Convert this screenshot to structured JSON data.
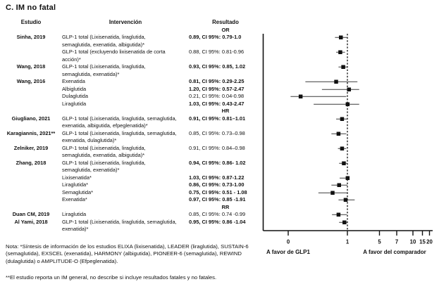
{
  "title": "C. IM no fatal",
  "table": {
    "headers": {
      "study": "Estudio",
      "intervention": "Intervención",
      "result": "Resultado"
    }
  },
  "chart_data": {
    "type": "scatter",
    "subtype": "forest-plot",
    "title": "C. IM no fatal",
    "x_ticks": [
      0,
      1,
      5,
      7,
      10,
      15,
      20
    ],
    "reference_line": 1,
    "axis_label_left": "A favor de GLP1",
    "axis_label_right": "A favor del comparador",
    "sections": [
      {
        "measure": "OR",
        "rows": [
          {
            "study": "Sinha, 2019",
            "intervention": "GLP-1 total (Lixisenatida, liraglutida,\nsemaglutida, exenatida, albigutida)*",
            "result": "0.89, CI 95%: 0.79-1.0",
            "bold": true,
            "est": 0.89,
            "lo": 0.79,
            "hi": 1.0
          },
          {
            "study": "",
            "intervention": "GLP-1 total (excluyendo lixisenatida de corta\nacción)*",
            "result": "0.88, CI 95%: 0.81-0.96",
            "bold": false,
            "est": 0.88,
            "lo": 0.81,
            "hi": 0.96
          },
          {
            "study": "Wang, 2018",
            "intervention": "GLP-1 total (Lixisenatida, liraglutida,\nsemaglutida, exenatida)*",
            "result": "0.93, CI 95%: 0.85, 1.02",
            "bold": true,
            "est": 0.93,
            "lo": 0.85,
            "hi": 1.02
          },
          {
            "study": "Wang, 2016",
            "intervention": "Exenatida",
            "result": "0.81, CI 95%: 0.29-2.25",
            "bold": true,
            "est": 0.81,
            "lo": 0.29,
            "hi": 2.25
          },
          {
            "study": "",
            "intervention": "Albiglutida",
            "result": "1.20, CI 95%: 0.57-2.47",
            "bold": true,
            "est": 1.2,
            "lo": 0.57,
            "hi": 2.47
          },
          {
            "study": "",
            "intervention": "Dulaglutida",
            "result": "0.21, CI 95%: 0.04-0.98",
            "bold": false,
            "est": 0.21,
            "lo": 0.04,
            "hi": 0.98
          },
          {
            "study": "",
            "intervention": "Liraglutida",
            "result": "1.03, CI 95%: 0.43-2.47",
            "bold": true,
            "est": 1.03,
            "lo": 0.43,
            "hi": 2.47
          }
        ]
      },
      {
        "measure": "HR",
        "rows": [
          {
            "study": "Giugliano, 2021",
            "intervention": "GLP-1 total (Lixisenatida, liraglutida, semaglutida,\nexenatida, albigutida, efpeglenatida)*",
            "result": "0.91, CI 95%: 0.81–1.01",
            "bold": true,
            "est": 0.91,
            "lo": 0.81,
            "hi": 1.01
          },
          {
            "study": "Karagiannis, 2021**",
            "intervention": "GLP-1 total (Lixisenatida, liraglutida, semaglutida,\nexenatida, dulaglutida)*",
            "result": "0.85, CI 95%: 0.73–0.98",
            "bold": false,
            "est": 0.85,
            "lo": 0.73,
            "hi": 0.98
          },
          {
            "study": "Zelniker, 2019",
            "intervention": "GLP-1 total (Lixisenatida, liraglutida,\nsemaglutida, exenatida, albigutida)*",
            "result": "0.91, CI 95%: 0.84–0.98",
            "bold": false,
            "est": 0.91,
            "lo": 0.84,
            "hi": 0.98
          },
          {
            "study": "Zhang, 2018",
            "intervention": "GLP-1 total (Lixisenatida, liraglutida,\nsemaglutida, exenatida)*",
            "result": "0.94, CI 95%: 0.86- 1.02",
            "bold": true,
            "est": 0.94,
            "lo": 0.86,
            "hi": 1.02
          },
          {
            "study": "",
            "intervention": "Lixisenatida*",
            "result": "1.03, CI 95%: 0.87-1.22",
            "bold": true,
            "est": 1.03,
            "lo": 0.87,
            "hi": 1.22
          },
          {
            "study": "",
            "intervention": "Liraglutida*",
            "result": "0.86, CI 95%: 0.73-1.00",
            "bold": true,
            "est": 0.86,
            "lo": 0.73,
            "hi": 1.0
          },
          {
            "study": "",
            "intervention": "Semaglutida*",
            "result": "0.75, CI 95%: 0.51 - 1.08",
            "bold": true,
            "est": 0.75,
            "lo": 0.51,
            "hi": 1.08
          },
          {
            "study": "",
            "intervention": "Exenatida*",
            "result": "0.97, CI 95%: 0.85 -1.91",
            "bold": true,
            "est": 0.97,
            "lo": 0.85,
            "hi": 1.91
          }
        ]
      },
      {
        "measure": "RR",
        "rows": [
          {
            "study": "Duan CM, 2019",
            "intervention": "Liraglutida",
            "result": "0.85, CI 95%: 0.74 -0.99",
            "bold": false,
            "est": 0.85,
            "lo": 0.74,
            "hi": 0.99
          },
          {
            "study": "Al Yami, 2018",
            "intervention": "GLP-1 total (Lixisenatida, liraglutida, semaglutida,\nexenatida)*",
            "result": "0.95, CI 95%: 0.86 -1.04",
            "bold": true,
            "est": 0.95,
            "lo": 0.86,
            "hi": 1.04
          }
        ]
      }
    ]
  },
  "notes": {
    "note1": "Nota: *Síntesis de información de los estudios ELIXA (lixisenatida), LEADER (liraglutida), SUSTAIN-6 (semaglutida), EXSCEL (exenatida), HARMONY (albigutida), PIONEER-6 (semaglutida), REWIND (dulaglutida) o AMPLITUDE-O (Efpeglenatida).",
    "note2": "**El estudio reporta un IM general, no describe si incluye resultados fatales y no fatales."
  }
}
